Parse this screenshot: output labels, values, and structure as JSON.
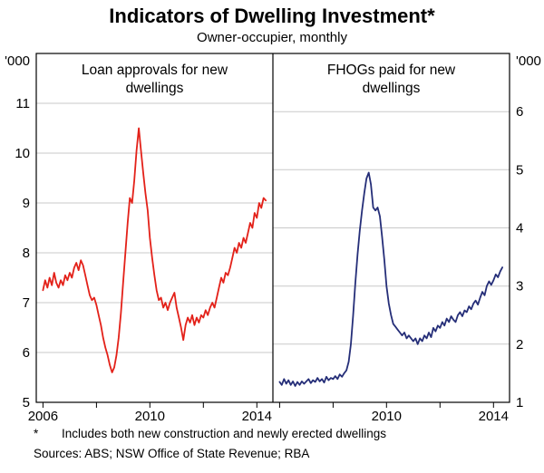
{
  "header": {
    "title": "Indicators of Dwelling Investment*",
    "subtitle": "Owner-occupier, monthly"
  },
  "footnotes": {
    "symbol": "*",
    "text": "Includes both new construction and newly erected dwellings",
    "sources": "Sources:  ABS; NSW Office of State Revenue; RBA"
  },
  "chart_data": {
    "type": "line",
    "unit_left": "'000",
    "unit_right": "'000",
    "grid_color": "#c9c9c9",
    "frame_color": "#000000",
    "x_start": 2006.0,
    "x_step_months": 1,
    "xlim": [
      2005.75,
      2014.6
    ],
    "panels": [
      {
        "series_name": "loan-approvals-series",
        "title_lines": [
          "Loan approvals for new",
          "dwellings"
        ],
        "color": "#e32119",
        "ylim": [
          5,
          12
        ],
        "yticks": [
          5,
          6,
          7,
          8,
          9,
          10,
          11
        ],
        "xticks": [
          {
            "v": 2006,
            "label": "2006"
          },
          {
            "v": 2008,
            "label": ""
          },
          {
            "v": 2010,
            "label": "2010"
          },
          {
            "v": 2012,
            "label": ""
          },
          {
            "v": 2014,
            "label": "2014"
          }
        ],
        "values": [
          7.25,
          7.45,
          7.3,
          7.5,
          7.35,
          7.6,
          7.4,
          7.3,
          7.45,
          7.35,
          7.55,
          7.45,
          7.6,
          7.5,
          7.7,
          7.8,
          7.65,
          7.85,
          7.75,
          7.55,
          7.35,
          7.15,
          7.05,
          7.1,
          6.95,
          6.75,
          6.55,
          6.3,
          6.1,
          5.95,
          5.75,
          5.6,
          5.7,
          5.95,
          6.3,
          6.8,
          7.4,
          8.0,
          8.6,
          9.1,
          9.0,
          9.45,
          10.05,
          10.5,
          10.05,
          9.6,
          9.2,
          8.85,
          8.3,
          7.9,
          7.55,
          7.25,
          7.05,
          7.1,
          6.9,
          7.0,
          6.85,
          7.0,
          7.1,
          7.2,
          6.9,
          6.7,
          6.5,
          6.25,
          6.55,
          6.7,
          6.6,
          6.75,
          6.55,
          6.7,
          6.6,
          6.75,
          6.7,
          6.85,
          6.75,
          6.9,
          7.0,
          6.9,
          7.1,
          7.3,
          7.5,
          7.4,
          7.6,
          7.55,
          7.7,
          7.9,
          8.1,
          8.0,
          8.2,
          8.1,
          8.3,
          8.2,
          8.4,
          8.6,
          8.5,
          8.8,
          8.7,
          9.0,
          8.9,
          9.1,
          9.05
        ]
      },
      {
        "series_name": "fhogs-paid-series",
        "title_lines": [
          "FHOGs paid for new",
          "dwellings"
        ],
        "color": "#252e78",
        "ylim": [
          1,
          7
        ],
        "yticks": [
          1,
          2,
          3,
          4,
          5,
          6
        ],
        "xticks": [
          {
            "v": 2006,
            "label": ""
          },
          {
            "v": 2008,
            "label": ""
          },
          {
            "v": 2010,
            "label": "2010"
          },
          {
            "v": 2012,
            "label": ""
          },
          {
            "v": 2014,
            "label": "2014"
          }
        ],
        "values": [
          1.35,
          1.3,
          1.4,
          1.32,
          1.38,
          1.3,
          1.36,
          1.28,
          1.35,
          1.3,
          1.36,
          1.32,
          1.36,
          1.4,
          1.33,
          1.38,
          1.35,
          1.42,
          1.36,
          1.4,
          1.34,
          1.44,
          1.38,
          1.42,
          1.4,
          1.45,
          1.4,
          1.48,
          1.44,
          1.5,
          1.55,
          1.7,
          2.0,
          2.5,
          3.05,
          3.55,
          3.95,
          4.3,
          4.6,
          4.85,
          4.95,
          4.75,
          4.35,
          4.3,
          4.35,
          4.2,
          3.85,
          3.45,
          3.0,
          2.7,
          2.5,
          2.35,
          2.3,
          2.25,
          2.2,
          2.15,
          2.2,
          2.1,
          2.15,
          2.1,
          2.05,
          2.1,
          2.0,
          2.1,
          2.05,
          2.15,
          2.1,
          2.2,
          2.12,
          2.28,
          2.22,
          2.32,
          2.28,
          2.38,
          2.32,
          2.44,
          2.38,
          2.48,
          2.42,
          2.38,
          2.5,
          2.55,
          2.48,
          2.58,
          2.55,
          2.65,
          2.6,
          2.7,
          2.75,
          2.68,
          2.8,
          2.9,
          2.84,
          3.0,
          3.08,
          3.02,
          3.1,
          3.2,
          3.15,
          3.25,
          3.32
        ]
      }
    ]
  }
}
